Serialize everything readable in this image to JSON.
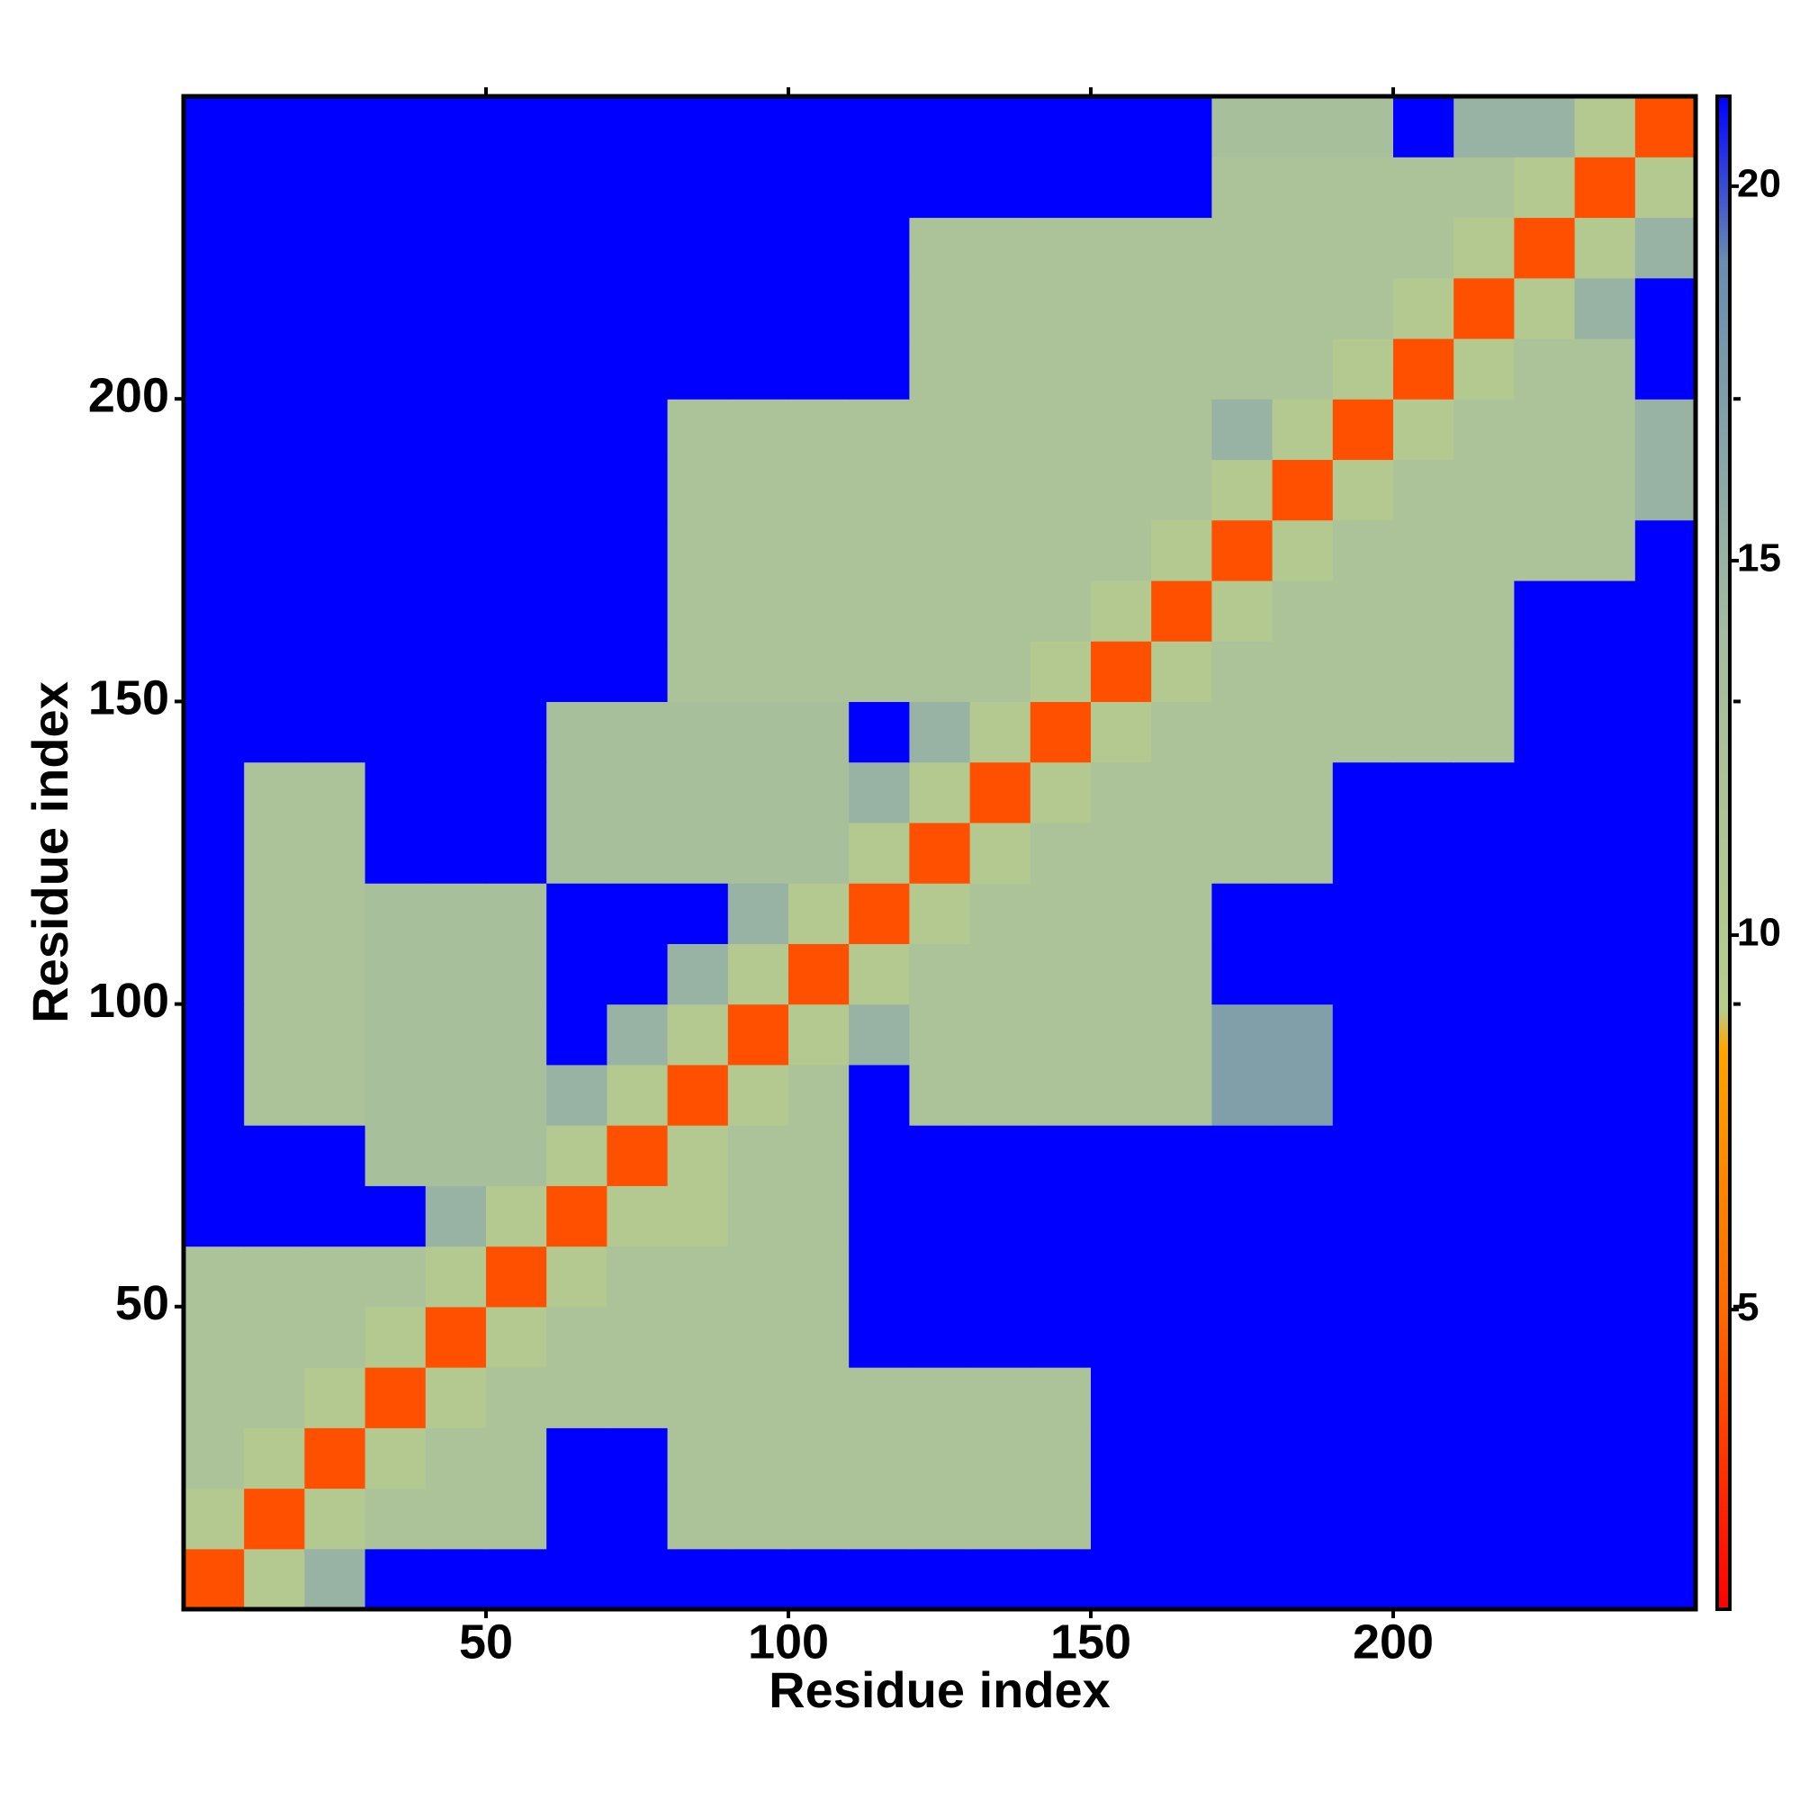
{
  "chart_data": {
    "type": "heatmap",
    "x_label": "Residue index",
    "y_label": "Residue index",
    "xbins": [
      0,
      10,
      20,
      30,
      40,
      50,
      60,
      70,
      80,
      90,
      100,
      110,
      120,
      130,
      140,
      150,
      160,
      170,
      180,
      190,
      200,
      210,
      220,
      230,
      240,
      250
    ],
    "ybins": [
      0,
      10,
      20,
      30,
      40,
      50,
      60,
      70,
      80,
      90,
      100,
      110,
      120,
      130,
      140,
      150,
      160,
      170,
      180,
      190,
      200,
      210,
      220,
      230,
      240,
      250
    ],
    "xlim": [
      0,
      250
    ],
    "ylim": [
      0,
      250
    ],
    "xticks": [
      50,
      100,
      150,
      200
    ],
    "yticks": [
      50,
      100,
      150,
      200
    ],
    "zlim": [
      1,
      21.2
    ],
    "zticks": [
      5,
      10,
      15,
      20
    ],
    "colorscale": [
      [
        1,
        "#ff0000"
      ],
      [
        5,
        "#ff6a00"
      ],
      [
        8.5,
        "#ffa500"
      ],
      [
        9,
        "#b8cc8c"
      ],
      [
        14,
        "#a4bca0"
      ],
      [
        19,
        "#6a8cae"
      ],
      [
        21.2,
        "#0000ff"
      ]
    ],
    "z": [
      [
        4,
        10,
        15,
        22,
        22,
        22,
        22,
        22,
        22,
        22,
        22,
        22,
        22,
        22,
        22,
        22,
        22,
        22,
        22,
        22,
        22,
        22,
        22,
        22,
        22
      ],
      [
        10,
        4,
        10,
        12,
        12,
        12,
        22,
        22,
        12,
        12,
        12,
        12,
        12,
        12,
        12,
        22,
        22,
        22,
        22,
        22,
        22,
        22,
        22,
        22,
        22
      ],
      [
        12,
        10,
        4,
        10,
        12,
        12,
        22,
        22,
        12,
        12,
        12,
        12,
        12,
        12,
        12,
        22,
        22,
        22,
        22,
        22,
        22,
        22,
        22,
        22,
        22
      ],
      [
        12,
        12,
        10,
        4,
        10,
        12,
        12,
        12,
        12,
        12,
        12,
        12,
        12,
        12,
        12,
        22,
        22,
        22,
        22,
        22,
        22,
        22,
        22,
        22,
        22
      ],
      [
        12,
        12,
        12,
        10,
        4,
        10,
        12,
        12,
        12,
        12,
        12,
        22,
        22,
        22,
        22,
        22,
        22,
        22,
        22,
        22,
        22,
        22,
        22,
        22,
        22
      ],
      [
        12,
        12,
        12,
        12,
        10,
        4,
        10,
        12,
        12,
        12,
        12,
        22,
        22,
        22,
        22,
        22,
        22,
        22,
        22,
        22,
        22,
        22,
        22,
        22,
        22
      ],
      [
        22,
        22,
        22,
        22,
        15,
        10,
        4,
        10,
        10,
        12,
        12,
        22,
        22,
        22,
        22,
        22,
        22,
        22,
        22,
        22,
        22,
        22,
        22,
        22,
        22
      ],
      [
        22,
        22,
        22,
        13,
        13,
        13,
        10,
        4,
        10,
        12,
        12,
        22,
        22,
        22,
        22,
        22,
        22,
        22,
        22,
        22,
        22,
        22,
        22,
        22,
        22
      ],
      [
        22,
        12,
        12,
        13,
        13,
        13,
        15,
        10,
        4,
        10,
        12,
        22,
        12,
        12,
        12,
        12,
        12,
        17,
        17,
        22,
        22,
        22,
        22,
        22,
        22
      ],
      [
        22,
        12,
        12,
        13,
        13,
        13,
        22,
        15,
        10,
        4,
        10,
        15,
        12,
        12,
        12,
        12,
        12,
        17,
        17,
        22,
        22,
        22,
        22,
        22,
        22
      ],
      [
        22,
        12,
        12,
        13,
        13,
        13,
        22,
        22,
        15,
        10,
        4,
        10,
        12,
        12,
        12,
        12,
        12,
        22,
        22,
        22,
        22,
        22,
        22,
        22,
        22
      ],
      [
        22,
        12,
        12,
        13,
        13,
        13,
        22,
        22,
        22,
        15,
        10,
        4,
        10,
        12,
        12,
        12,
        12,
        22,
        22,
        22,
        22,
        22,
        22,
        22,
        22
      ],
      [
        22,
        12,
        12,
        22,
        22,
        22,
        13,
        13,
        13,
        13,
        13,
        10,
        4,
        10,
        12,
        12,
        12,
        12,
        12,
        22,
        22,
        22,
        22,
        22,
        22
      ],
      [
        22,
        12,
        12,
        22,
        22,
        22,
        13,
        13,
        13,
        13,
        13,
        15,
        10,
        4,
        10,
        12,
        12,
        12,
        12,
        22,
        22,
        22,
        22,
        22,
        22
      ],
      [
        22,
        22,
        22,
        22,
        22,
        22,
        13,
        13,
        13,
        13,
        13,
        22,
        15,
        10,
        4,
        10,
        12,
        12,
        12,
        12,
        12,
        12,
        22,
        22,
        22
      ],
      [
        22,
        22,
        22,
        22,
        22,
        22,
        22,
        22,
        12,
        12,
        12,
        12,
        12,
        12,
        10,
        4,
        10,
        12,
        12,
        12,
        12,
        12,
        22,
        22,
        22
      ],
      [
        22,
        22,
        22,
        22,
        22,
        22,
        22,
        22,
        12,
        12,
        12,
        12,
        12,
        12,
        12,
        10,
        4,
        10,
        12,
        12,
        12,
        12,
        22,
        22,
        22
      ],
      [
        22,
        22,
        22,
        22,
        22,
        22,
        22,
        22,
        12,
        12,
        12,
        12,
        12,
        12,
        12,
        12,
        10,
        4,
        10,
        12,
        12,
        12,
        12,
        12,
        22
      ],
      [
        22,
        22,
        22,
        22,
        22,
        22,
        22,
        22,
        12,
        12,
        12,
        12,
        12,
        12,
        12,
        12,
        12,
        10,
        4,
        10,
        12,
        12,
        12,
        12,
        15
      ],
      [
        22,
        22,
        22,
        22,
        22,
        22,
        22,
        22,
        12,
        12,
        12,
        12,
        12,
        12,
        12,
        12,
        12,
        15,
        10,
        4,
        10,
        12,
        12,
        12,
        15
      ],
      [
        22,
        22,
        22,
        22,
        22,
        22,
        22,
        22,
        22,
        22,
        22,
        22,
        12,
        12,
        12,
        12,
        12,
        12,
        12,
        10,
        4,
        10,
        12,
        12,
        22
      ],
      [
        22,
        22,
        22,
        22,
        22,
        22,
        22,
        22,
        22,
        22,
        22,
        22,
        12,
        12,
        12,
        12,
        12,
        12,
        12,
        12,
        10,
        4,
        10,
        15,
        22
      ],
      [
        22,
        22,
        22,
        22,
        22,
        22,
        22,
        22,
        22,
        22,
        22,
        22,
        12,
        12,
        12,
        12,
        12,
        12,
        12,
        12,
        12,
        10,
        4,
        10,
        15
      ],
      [
        22,
        22,
        22,
        22,
        22,
        22,
        22,
        22,
        22,
        22,
        22,
        22,
        22,
        22,
        22,
        22,
        22,
        12,
        12,
        12,
        12,
        12,
        10,
        4,
        10
      ],
      [
        22,
        22,
        22,
        22,
        22,
        22,
        22,
        22,
        22,
        22,
        22,
        22,
        22,
        22,
        22,
        22,
        22,
        13,
        13,
        13,
        22,
        15,
        15,
        10,
        4
      ]
    ]
  }
}
